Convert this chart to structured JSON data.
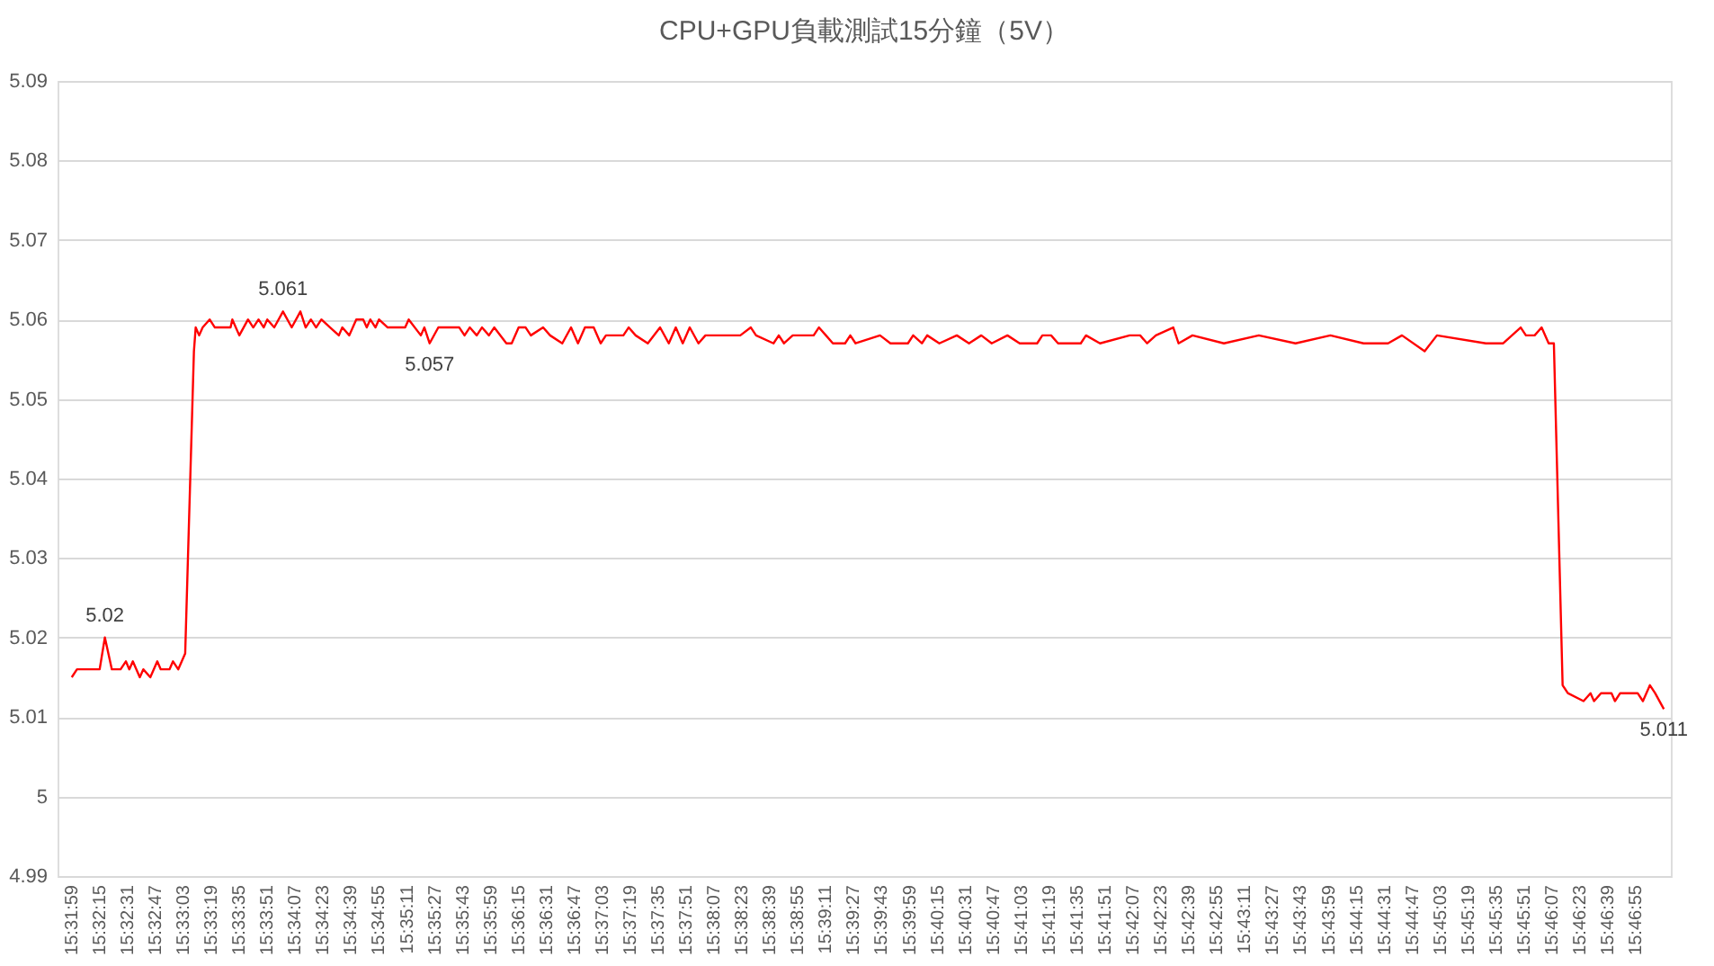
{
  "chart_data": {
    "type": "line",
    "title": "CPU+GPU負載測試15分鐘（5V）",
    "x": [
      15.53306,
      15.53389,
      15.5375,
      15.53833,
      15.53944,
      15.54083,
      15.54167,
      15.54222,
      15.54278,
      15.54389,
      15.54444,
      15.54556,
      15.54667,
      15.54722,
      15.54861,
      15.54917,
      15.55,
      15.55111,
      15.5525,
      15.55278,
      15.55333,
      15.55389,
      15.555,
      15.55583,
      15.55833,
      15.55861,
      15.55972,
      15.56111,
      15.56194,
      15.56278,
      15.56361,
      15.56417,
      15.56528,
      15.56667,
      15.56806,
      15.56944,
      15.57028,
      15.57111,
      15.57194,
      15.57278,
      15.57417,
      15.57556,
      15.57611,
      15.57722,
      15.57833,
      15.57944,
      15.58,
      15.58056,
      15.58139,
      15.58194,
      15.58333,
      15.58611,
      15.58667,
      15.58861,
      15.58917,
      15.59,
      15.59139,
      15.59472,
      15.59556,
      15.59639,
      15.5975,
      15.59833,
      15.59944,
      15.60028,
      15.60222,
      15.60306,
      15.60417,
      15.60528,
      15.60611,
      15.60806,
      15.60917,
      15.61111,
      15.6125,
      15.61361,
      15.61472,
      15.61611,
      15.61722,
      15.61806,
      15.62083,
      15.62167,
      15.62278,
      15.62472,
      15.62667,
      15.62806,
      15.62917,
      15.63028,
      15.63139,
      15.63278,
      15.63389,
      15.63944,
      15.64111,
      15.64194,
      15.64472,
      15.64556,
      15.64639,
      15.64778,
      15.65111,
      15.65194,
      15.65306,
      15.65417,
      15.65611,
      15.65694,
      15.65778,
      15.66167,
      15.66333,
      15.66611,
      15.66694,
      15.66833,
      15.66917,
      15.67111,
      15.67389,
      15.67583,
      15.67778,
      15.67944,
      15.68194,
      15.68389,
      15.68667,
      15.6875,
      15.68889,
      15.69,
      15.69361,
      15.69444,
      15.69667,
      15.70139,
      15.70306,
      15.70417,
      15.70556,
      15.70833,
      15.70917,
      15.71139,
      15.71639,
      15.72194,
      15.72778,
      15.73333,
      15.73861,
      15.7425,
      15.74472,
      15.74833,
      15.75028,
      15.75806,
      15.76083,
      15.76361,
      15.76444,
      15.76583,
      15.76694,
      15.76806,
      15.76889,
      15.77028,
      15.77111,
      15.77361,
      15.77472,
      15.77528,
      15.77639,
      15.77806,
      15.77861,
      15.77944,
      15.78222,
      15.78306,
      15.78417,
      15.785,
      15.78639
    ],
    "series": [
      {
        "color": "#ff0000",
        "values": [
          5.015,
          5.016,
          5.016,
          5.02,
          5.016,
          5.016,
          5.017,
          5.016,
          5.017,
          5.015,
          5.016,
          5.015,
          5.017,
          5.016,
          5.016,
          5.017,
          5.016,
          5.018,
          5.056,
          5.059,
          5.058,
          5.059,
          5.06,
          5.059,
          5.059,
          5.06,
          5.058,
          5.06,
          5.059,
          5.06,
          5.059,
          5.06,
          5.059,
          5.061,
          5.059,
          5.061,
          5.059,
          5.06,
          5.059,
          5.06,
          5.059,
          5.058,
          5.059,
          5.058,
          5.06,
          5.06,
          5.059,
          5.06,
          5.059,
          5.06,
          5.059,
          5.059,
          5.06,
          5.058,
          5.059,
          5.057,
          5.059,
          5.059,
          5.058,
          5.059,
          5.058,
          5.059,
          5.058,
          5.059,
          5.057,
          5.057,
          5.059,
          5.059,
          5.058,
          5.059,
          5.058,
          5.057,
          5.059,
          5.057,
          5.059,
          5.059,
          5.057,
          5.058,
          5.058,
          5.059,
          5.058,
          5.057,
          5.059,
          5.057,
          5.059,
          5.057,
          5.059,
          5.057,
          5.058,
          5.058,
          5.059,
          5.058,
          5.057,
          5.058,
          5.057,
          5.058,
          5.058,
          5.059,
          5.058,
          5.057,
          5.057,
          5.058,
          5.057,
          5.058,
          5.057,
          5.057,
          5.058,
          5.057,
          5.058,
          5.057,
          5.058,
          5.057,
          5.058,
          5.057,
          5.058,
          5.057,
          5.057,
          5.058,
          5.058,
          5.057,
          5.057,
          5.058,
          5.057,
          5.058,
          5.058,
          5.057,
          5.058,
          5.059,
          5.057,
          5.058,
          5.057,
          5.058,
          5.057,
          5.058,
          5.057,
          5.057,
          5.058,
          5.056,
          5.058,
          5.057,
          5.057,
          5.059,
          5.058,
          5.058,
          5.059,
          5.057,
          5.057,
          5.014,
          5.013,
          5.012,
          5.013,
          5.012,
          5.013,
          5.013,
          5.012,
          5.013,
          5.013,
          5.012,
          5.014,
          5.013,
          5.011
        ]
      }
    ],
    "annotations": [
      {
        "text": "5.02",
        "x": 15.53833,
        "y": 5.02
      },
      {
        "text": "5.061",
        "x": 15.56667,
        "y": 5.061
      },
      {
        "text": "5.057",
        "x": 15.59,
        "y": 5.057
      },
      {
        "text": "5.011",
        "x": 15.78639,
        "y": 5.011
      }
    ],
    "xlim": [
      15.5308,
      15.7875
    ],
    "xticks": [
      {
        "value": 15.53306,
        "label": "15:31:59"
      },
      {
        "value": 15.5375,
        "label": "15:32:15"
      },
      {
        "value": 15.54194,
        "label": "15:32:31"
      },
      {
        "value": 15.54639,
        "label": "15:32:47"
      },
      {
        "value": 15.55083,
        "label": "15:33:03"
      },
      {
        "value": 15.55528,
        "label": "15:33:19"
      },
      {
        "value": 15.55972,
        "label": "15:33:35"
      },
      {
        "value": 15.56417,
        "label": "15:33:51"
      },
      {
        "value": 15.56861,
        "label": "15:34:07"
      },
      {
        "value": 15.57306,
        "label": "15:34:23"
      },
      {
        "value": 15.5775,
        "label": "15:34:39"
      },
      {
        "value": 15.58194,
        "label": "15:34:55"
      },
      {
        "value": 15.58639,
        "label": "15:35:11"
      },
      {
        "value": 15.59083,
        "label": "15:35:27"
      },
      {
        "value": 15.59528,
        "label": "15:35:43"
      },
      {
        "value": 15.59972,
        "label": "15:35:59"
      },
      {
        "value": 15.60417,
        "label": "15:36:15"
      },
      {
        "value": 15.60861,
        "label": "15:36:31"
      },
      {
        "value": 15.61306,
        "label": "15:36:47"
      },
      {
        "value": 15.6175,
        "label": "15:37:03"
      },
      {
        "value": 15.62194,
        "label": "15:37:19"
      },
      {
        "value": 15.62639,
        "label": "15:37:35"
      },
      {
        "value": 15.63083,
        "label": "15:37:51"
      },
      {
        "value": 15.63528,
        "label": "15:38:07"
      },
      {
        "value": 15.63972,
        "label": "15:38:23"
      },
      {
        "value": 15.64417,
        "label": "15:38:39"
      },
      {
        "value": 15.64861,
        "label": "15:38:55"
      },
      {
        "value": 15.65306,
        "label": "15:39:11"
      },
      {
        "value": 15.6575,
        "label": "15:39:27"
      },
      {
        "value": 15.66194,
        "label": "15:39:43"
      },
      {
        "value": 15.66639,
        "label": "15:39:59"
      },
      {
        "value": 15.67083,
        "label": "15:40:15"
      },
      {
        "value": 15.67528,
        "label": "15:40:31"
      },
      {
        "value": 15.67972,
        "label": "15:40:47"
      },
      {
        "value": 15.68417,
        "label": "15:41:03"
      },
      {
        "value": 15.68861,
        "label": "15:41:19"
      },
      {
        "value": 15.69306,
        "label": "15:41:35"
      },
      {
        "value": 15.6975,
        "label": "15:41:51"
      },
      {
        "value": 15.70194,
        "label": "15:42:07"
      },
      {
        "value": 15.70639,
        "label": "15:42:23"
      },
      {
        "value": 15.71083,
        "label": "15:42:39"
      },
      {
        "value": 15.71528,
        "label": "15:42:55"
      },
      {
        "value": 15.71972,
        "label": "15:43:11"
      },
      {
        "value": 15.72417,
        "label": "15:43:27"
      },
      {
        "value": 15.72861,
        "label": "15:43:43"
      },
      {
        "value": 15.73306,
        "label": "15:43:59"
      },
      {
        "value": 15.7375,
        "label": "15:44:15"
      },
      {
        "value": 15.74194,
        "label": "15:44:31"
      },
      {
        "value": 15.74639,
        "label": "15:44:47"
      },
      {
        "value": 15.75083,
        "label": "15:45:03"
      },
      {
        "value": 15.75528,
        "label": "15:45:19"
      },
      {
        "value": 15.75972,
        "label": "15:45:35"
      },
      {
        "value": 15.76417,
        "label": "15:45:51"
      },
      {
        "value": 15.76861,
        "label": "15:46:07"
      },
      {
        "value": 15.77306,
        "label": "15:46:23"
      },
      {
        "value": 15.7775,
        "label": "15:46:39"
      },
      {
        "value": 15.78194,
        "label": "15:46:55"
      }
    ],
    "ylim": [
      4.99,
      5.09
    ],
    "yticks": [
      4.99,
      5,
      5.01,
      5.02,
      5.03,
      5.04,
      5.05,
      5.06,
      5.07,
      5.08,
      5.09
    ],
    "grid": "y",
    "marker": "none",
    "line_style": "solid"
  }
}
